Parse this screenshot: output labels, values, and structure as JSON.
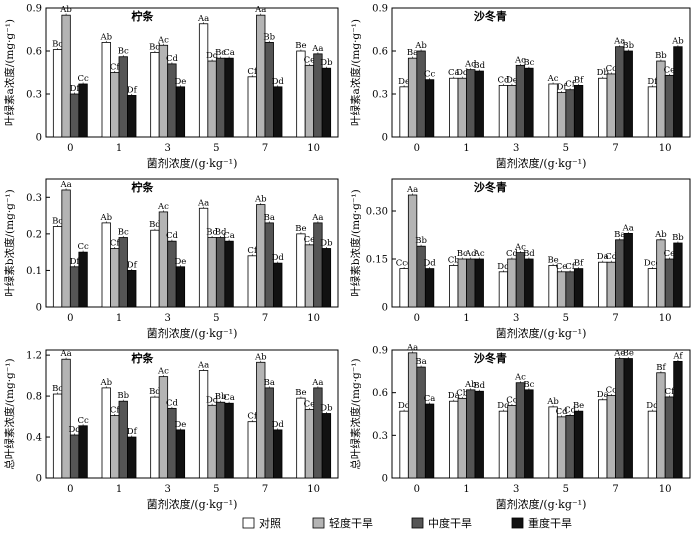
{
  "legend": {
    "items": [
      {
        "label": "对照",
        "color": "#ffffff"
      },
      {
        "label": "轻度干旱",
        "color": "#b4b4b4"
      },
      {
        "label": "中度干旱",
        "color": "#555555"
      },
      {
        "label": "重度干旱",
        "color": "#111111"
      }
    ]
  },
  "chart_data": [
    {
      "type": "bar",
      "title": "柠条",
      "ylabel": "叶绿素a浓度/(mg·g⁻¹)",
      "xlabel": "菌剂浓度/(g·kg⁻¹)",
      "categories": [
        "0",
        "1",
        "3",
        "5",
        "7",
        "10"
      ],
      "ylim": [
        0,
        0.9
      ],
      "yticks": [
        "0",
        "0.3",
        "0.6",
        "0.9"
      ],
      "series": [
        {
          "name": "对照",
          "values": [
            0.61,
            0.66,
            0.59,
            0.79,
            0.42,
            0.6
          ],
          "labels": [
            "Bc",
            "Ab",
            "Bd",
            "Aa",
            "Cf",
            "Be"
          ]
        },
        {
          "name": "轻度干旱",
          "values": [
            0.85,
            0.45,
            0.64,
            0.53,
            0.85,
            0.5
          ],
          "labels": [
            "Ab",
            "Cf",
            "Ac",
            "Dd",
            "Aa",
            "Ce"
          ]
        },
        {
          "name": "中度干旱",
          "values": [
            0.3,
            0.56,
            0.51,
            0.55,
            0.66,
            0.58
          ],
          "labels": [
            "Df",
            "Bc",
            "Cd",
            "Bc",
            "Bb",
            "Aa"
          ]
        },
        {
          "name": "重度干旱",
          "values": [
            0.37,
            0.29,
            0.35,
            0.55,
            0.35,
            0.48
          ],
          "labels": [
            "Cc",
            "Df",
            "De",
            "Ca",
            "Dd",
            "Db"
          ]
        }
      ]
    },
    {
      "type": "bar",
      "title": "沙冬青",
      "ylabel": "叶绿素a浓度/(mg·g⁻¹)",
      "xlabel": "菌剂浓度/(g·kg⁻¹)",
      "categories": [
        "0",
        "1",
        "3",
        "5",
        "7",
        "10"
      ],
      "ylim": [
        0,
        0.9
      ],
      "yticks": [
        "0",
        "0.3",
        "0.6",
        "0.9"
      ],
      "series": [
        {
          "name": "对照",
          "values": [
            0.35,
            0.41,
            0.36,
            0.37,
            0.41,
            0.35
          ],
          "labels": [
            "De",
            "Ca",
            "Cd",
            "Ac",
            "Db",
            "Df"
          ]
        },
        {
          "name": "轻度干旱",
          "values": [
            0.55,
            0.41,
            0.36,
            0.31,
            0.44,
            0.53
          ],
          "labels": [
            "Ba",
            "Dd",
            "De",
            "Df",
            "Cc",
            "Bb"
          ]
        },
        {
          "name": "中度干旱",
          "values": [
            0.6,
            0.47,
            0.5,
            0.33,
            0.63,
            0.43
          ],
          "labels": [
            "Ab",
            "Ad",
            "Ac",
            "Cf",
            "Aa",
            "Ce"
          ]
        },
        {
          "name": "重度干旱",
          "values": [
            0.4,
            0.46,
            0.48,
            0.36,
            0.6,
            0.63
          ],
          "labels": [
            "Cc",
            "Bd",
            "Bc",
            "Bf",
            "Bb",
            "Ab"
          ]
        }
      ]
    },
    {
      "type": "bar",
      "title": "柠条",
      "ylabel": "叶绿素b浓度/(mg·g⁻¹)",
      "xlabel": "菌剂浓度/(g·kg⁻¹)",
      "categories": [
        "0",
        "1",
        "3",
        "5",
        "7",
        "10"
      ],
      "ylim": [
        0,
        0.35
      ],
      "yticks": [
        "0",
        "0.1",
        "0.2",
        "0.3"
      ],
      "series": [
        {
          "name": "对照",
          "values": [
            0.22,
            0.23,
            0.21,
            0.27,
            0.14,
            0.2
          ],
          "labels": [
            "Bc",
            "Ab",
            "Bd",
            "Aa",
            "Cf",
            "Be"
          ]
        },
        {
          "name": "轻度干旱",
          "values": [
            0.32,
            0.16,
            0.26,
            0.19,
            0.28,
            0.17
          ],
          "labels": [
            "Aa",
            "Cf",
            "Ac",
            "Bd",
            "Ab",
            "Ce"
          ]
        },
        {
          "name": "中度干旱",
          "values": [
            0.11,
            0.19,
            0.18,
            0.19,
            0.23,
            0.23
          ],
          "labels": [
            "Df",
            "Bc",
            "Cd",
            "Bd",
            "Ba",
            "Aa"
          ]
        },
        {
          "name": "重度干旱",
          "values": [
            0.15,
            0.1,
            0.11,
            0.18,
            0.12,
            0.16
          ],
          "labels": [
            "Cc",
            "Df",
            "De",
            "Ca",
            "Dd",
            "Db"
          ]
        }
      ]
    },
    {
      "type": "bar",
      "title": "沙冬青",
      "ylabel": "叶绿素b浓度/(mg·g⁻¹)",
      "xlabel": "菌剂浓度/(g·kg⁻¹)",
      "categories": [
        "0",
        "1",
        "3",
        "5",
        "7",
        "10"
      ],
      "ylim": [
        0,
        0.4
      ],
      "yticks": [
        "0",
        "0.15",
        "0.30"
      ],
      "series": [
        {
          "name": "对照",
          "values": [
            0.12,
            0.13,
            0.11,
            0.13,
            0.14,
            0.12
          ],
          "labels": [
            "Ccd",
            "Cb",
            "Dd",
            "Be",
            "Da",
            "Dcd"
          ]
        },
        {
          "name": "轻度干旱",
          "values": [
            0.35,
            0.15,
            0.15,
            0.11,
            0.14,
            0.21
          ],
          "labels": [
            "Aa",
            "Bc",
            "Cd",
            "Ce",
            "Cd",
            "Ab"
          ]
        },
        {
          "name": "中度干旱",
          "values": [
            0.19,
            0.15,
            0.17,
            0.11,
            0.21,
            0.15
          ],
          "labels": [
            "Bb",
            "Ad",
            "Ac",
            "Cf",
            "Ba",
            "Ce"
          ]
        },
        {
          "name": "重度干旱",
          "values": [
            0.12,
            0.15,
            0.15,
            0.12,
            0.23,
            0.2
          ],
          "labels": [
            "Dd",
            "Ac",
            "Bd",
            "Bf",
            "Aa",
            "Bb"
          ]
        }
      ]
    },
    {
      "type": "bar",
      "title": "柠条",
      "ylabel": "总叶绿素浓度/(mg·g⁻¹)",
      "xlabel": "菌剂浓度/(g·kg⁻¹)",
      "categories": [
        "0",
        "1",
        "3",
        "5",
        "7",
        "10"
      ],
      "ylim": [
        0,
        1.25
      ],
      "yticks": [
        "0",
        "0.4",
        "0.8",
        "1.2"
      ],
      "series": [
        {
          "name": "对照",
          "values": [
            0.82,
            0.88,
            0.79,
            1.05,
            0.55,
            0.78
          ],
          "labels": [
            "Bc",
            "Ab",
            "Bd",
            "Aa",
            "Cf",
            "Be"
          ]
        },
        {
          "name": "轻度干旱",
          "values": [
            1.16,
            0.61,
            0.99,
            0.71,
            1.13,
            0.67
          ],
          "labels": [
            "Aa",
            "Cf",
            "Ac",
            "Dd",
            "Ab",
            "Ce"
          ]
        },
        {
          "name": "中度干旱",
          "values": [
            0.42,
            0.75,
            0.68,
            0.74,
            0.88,
            0.88
          ],
          "labels": [
            "Dd",
            "Bb",
            "Cd",
            "Bb",
            "Ba",
            "Aa"
          ]
        },
        {
          "name": "重度干旱",
          "values": [
            0.51,
            0.4,
            0.47,
            0.73,
            0.47,
            0.63
          ],
          "labels": [
            "Cc",
            "Df",
            "De",
            "Ca",
            "Dd",
            "Db"
          ]
        }
      ]
    },
    {
      "type": "bar",
      "title": "沙冬青",
      "ylabel": "总叶绿素浓度/(mg·g⁻¹)",
      "xlabel": "菌剂浓度/(g·kg⁻¹)",
      "categories": [
        "0",
        "1",
        "3",
        "5",
        "7",
        "10"
      ],
      "ylim": [
        0,
        0.9
      ],
      "yticks": [
        "0",
        "0.3",
        "0.6",
        "0.9"
      ],
      "series": [
        {
          "name": "对照",
          "values": [
            0.47,
            0.54,
            0.47,
            0.5,
            0.55,
            0.47
          ],
          "labels": [
            "Dd",
            "Da",
            "Dd",
            "Ab",
            "Da",
            "Dd"
          ]
        },
        {
          "name": "轻度干旱",
          "values": [
            0.88,
            0.56,
            0.51,
            0.43,
            0.58,
            0.74
          ],
          "labels": [
            "Aa",
            "Cb",
            "Cc",
            "Cd",
            "Cc",
            "Bf"
          ]
        },
        {
          "name": "中度干旱",
          "values": [
            0.78,
            0.62,
            0.67,
            0.44,
            0.84,
            0.57
          ],
          "labels": [
            "Ba",
            "Ab",
            "Ac",
            "Cd",
            "Ae",
            "Cf"
          ]
        },
        {
          "name": "重度干旱",
          "values": [
            0.52,
            0.61,
            0.62,
            0.47,
            0.84,
            0.82
          ],
          "labels": [
            "Ca",
            "Bd",
            "Bc",
            "Be",
            "Be",
            "Af"
          ]
        }
      ]
    }
  ]
}
